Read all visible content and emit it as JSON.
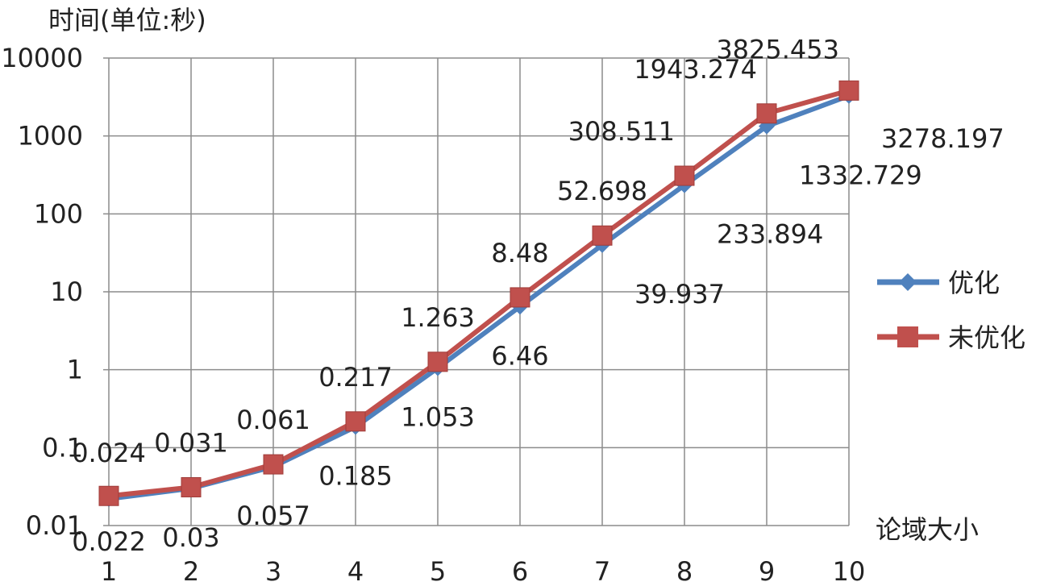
{
  "chart_data": {
    "type": "line",
    "ylabel": "时间(单位:秒)",
    "xlabel": "论域大小",
    "y_scale": "log",
    "ylim": [
      0.01,
      10000
    ],
    "y_ticks": [
      "0.01",
      "0.1",
      "1",
      "10",
      "100",
      "1000",
      "10000"
    ],
    "x": [
      1,
      2,
      3,
      4,
      5,
      6,
      7,
      8,
      9,
      10
    ],
    "x_ticks": [
      "1",
      "2",
      "3",
      "4",
      "5",
      "6",
      "7",
      "8",
      "9",
      "10"
    ],
    "grid": true,
    "legend_position": "right",
    "series": [
      {
        "name": "优化",
        "color": "#4F81BD",
        "marker": "diamond",
        "values": [
          0.022,
          0.03,
          0.057,
          0.185,
          1.053,
          6.46,
          39.937,
          233.894,
          1332.729,
          3278.197
        ],
        "labels": [
          "0.022",
          "0.03",
          "0.057",
          "0.185",
          "1.053",
          "6.46",
          "39.937",
          "233.894",
          "1332.729",
          "3278.197"
        ]
      },
      {
        "name": "未优化",
        "color": "#C0504D",
        "marker": "square",
        "values": [
          0.024,
          0.031,
          0.061,
          0.217,
          1.263,
          8.48,
          52.698,
          308.511,
          1943.274,
          3825.453
        ],
        "labels": [
          "0.024",
          "0.031",
          "0.061",
          "0.217",
          "1.263",
          "8.48",
          "52.698",
          "308.511",
          "1943.274",
          "3825.453"
        ]
      }
    ]
  }
}
